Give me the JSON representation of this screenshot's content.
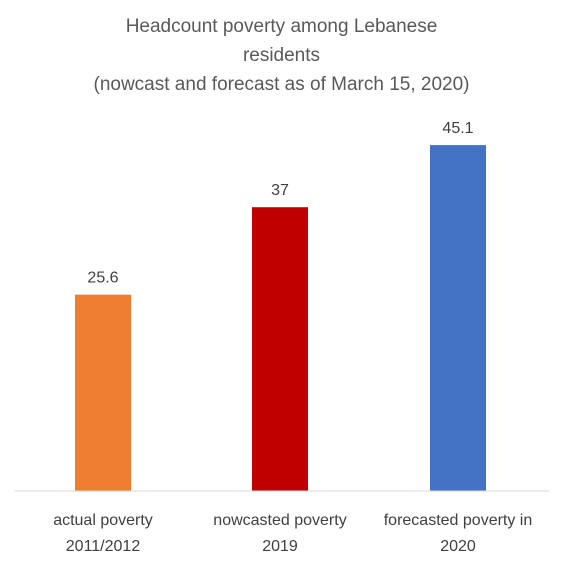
{
  "chart_data": {
    "type": "bar",
    "title": [
      "Headcount poverty among Lebanese",
      "residents",
      "(nowcast and forecast as of March 15, 2020)"
    ],
    "categories": [
      [
        "actual poverty",
        "2011/2012"
      ],
      [
        "nowcasted poverty",
        "2019"
      ],
      [
        "forecasted poverty in",
        "2020"
      ]
    ],
    "values": [
      25.6,
      37,
      45.1
    ],
    "value_labels": [
      "25.6",
      "37",
      "45.1"
    ],
    "colors": [
      "#ED7D31",
      "#C00000",
      "#4472C4"
    ],
    "xlabel": "",
    "ylabel": "",
    "ylim": [
      0,
      50
    ],
    "grid": false,
    "legend": "none"
  }
}
